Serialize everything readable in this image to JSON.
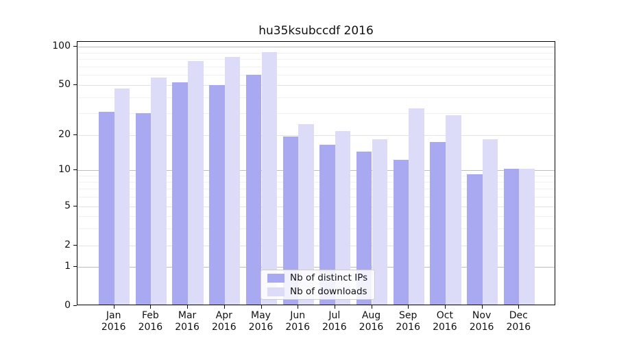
{
  "title": "hu35ksubccdf 2016",
  "chart_data": {
    "type": "bar",
    "title": "hu35ksubccdf 2016",
    "categories": [
      "Jan 2016",
      "Feb 2016",
      "Mar 2016",
      "Apr 2016",
      "May 2016",
      "Jun 2016",
      "Jul 2016",
      "Aug 2016",
      "Sep 2016",
      "Oct 2016",
      "Nov 2016",
      "Dec 2016"
    ],
    "series": [
      {
        "name": "Nb of distinct IPs",
        "color": "#a9a9f2",
        "values": [
          30,
          29,
          51,
          49,
          59,
          19,
          16,
          14,
          12,
          17,
          9,
          10
        ]
      },
      {
        "name": "Nb of downloads",
        "color": "#dcdcf8",
        "values": [
          46,
          56,
          75,
          81,
          88,
          24,
          21,
          18,
          32,
          28,
          18,
          10
        ]
      }
    ],
    "xlabel": "",
    "ylabel": "",
    "yscale": "log-like (0,1,2,5,10,20,50,100 ticks)",
    "yticks": [
      100,
      50,
      20,
      10,
      5,
      2,
      1,
      0
    ],
    "ylim": [
      0,
      100
    ],
    "grid": true,
    "legend_position": "lower center"
  },
  "axis": {
    "y_tick_labels": [
      "100",
      "50",
      "20",
      "10",
      "5",
      "2",
      "1",
      "0"
    ],
    "x_tick_year": "2016"
  },
  "colors": {
    "bar_dark": "#a9a9f2",
    "bar_light": "#dcdcf8",
    "grid_decade": "#bdbdbd",
    "grid_mid": "#e2e2e2",
    "grid_minor": "#f0f0f0",
    "spine": "#000000",
    "text": "#111111"
  }
}
